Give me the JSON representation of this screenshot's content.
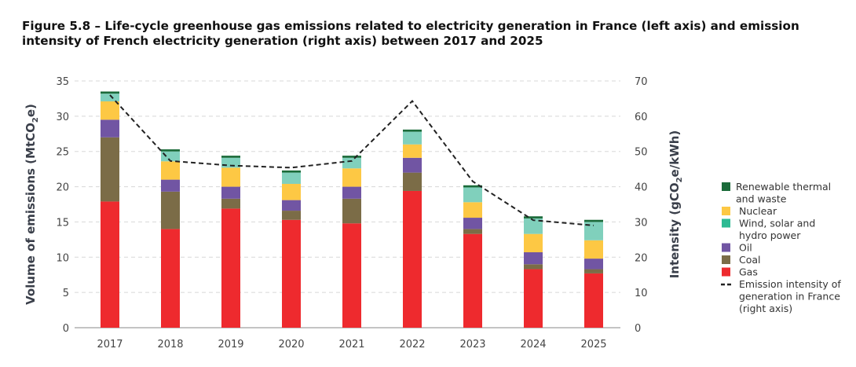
{
  "title": "Figure 5.8 – Life-cycle greenhouse gas emissions related to electricity generation in France (left axis) and emission intensity of French electricity generation (right axis) between 2017 and 2025",
  "chart_data": {
    "type": "bar",
    "stacked": true,
    "title": "Figure 5.8 – Life-cycle greenhouse gas emissions related to electricity generation in France (left axis) and emission intensity of French electricity generation (right axis) between 2017 and 2025",
    "categories": [
      "2017",
      "2018",
      "2019",
      "2020",
      "2021",
      "2022",
      "2023",
      "2024",
      "2025"
    ],
    "ylabel": {
      "pre": "Volume of emissions (MtCO",
      "sub": "2",
      "post": "e)"
    },
    "y2label": {
      "pre": "Intensity (gCO",
      "sub": "2",
      "post": "e/kWh)"
    },
    "ylim": [
      0,
      35
    ],
    "yticks": [
      0,
      5,
      10,
      15,
      20,
      25,
      30,
      35
    ],
    "y2lim": [
      0,
      70
    ],
    "y2ticks": [
      0,
      10,
      20,
      30,
      40,
      50,
      60,
      70
    ],
    "grid": true,
    "legend_position": "right",
    "series": [
      {
        "name": "Gas",
        "color": "#EE2A2E",
        "values": [
          17.9,
          14.0,
          16.9,
          15.3,
          14.8,
          19.4,
          13.3,
          8.3,
          7.7
        ]
      },
      {
        "name": "Coal",
        "color": "#7B6C47",
        "values": [
          9.1,
          5.3,
          1.4,
          1.3,
          3.5,
          2.6,
          0.7,
          0.7,
          0.6
        ]
      },
      {
        "name": "Oil",
        "color": "#7155A3",
        "values": [
          2.5,
          1.7,
          1.7,
          1.5,
          1.7,
          2.1,
          1.6,
          1.7,
          1.5
        ]
      },
      {
        "name": "Nuclear",
        "color": "#FDC844",
        "values": [
          2.6,
          2.6,
          2.7,
          2.3,
          2.6,
          1.9,
          2.2,
          2.6,
          2.6
        ]
      },
      {
        "name": "Wind, solar and hydro power",
        "color": "#80D0BC",
        "legend_color": "#2DBA93",
        "values": [
          1.1,
          1.4,
          1.4,
          1.6,
          1.5,
          1.8,
          2.1,
          2.2,
          2.6
        ]
      },
      {
        "name": "Renewable thermal and waste",
        "color": "#1B6B3A",
        "values": [
          0.3,
          0.3,
          0.3,
          0.3,
          0.3,
          0.3,
          0.3,
          0.3,
          0.3
        ]
      }
    ],
    "line": {
      "name": "Emission intensity of generation in France (right axis)",
      "axis": "right",
      "style": "dashed",
      "color": "#222222",
      "values": [
        66,
        47.3,
        46,
        45.4,
        47.3,
        64.3,
        41.5,
        30.5,
        29
      ]
    },
    "legend": [
      {
        "label": [
          "Renewable thermal",
          "and waste"
        ],
        "series": 5
      },
      {
        "label": [
          "Nuclear"
        ],
        "series": 3
      },
      {
        "label": [
          "Wind, solar and",
          "hydro power"
        ],
        "series": 4
      },
      {
        "label": [
          "Oil"
        ],
        "series": 2
      },
      {
        "label": [
          "Coal"
        ],
        "series": 1
      },
      {
        "label": [
          "Gas"
        ],
        "series": 0
      },
      {
        "label": [
          "Emission intensity of",
          "generation in France",
          "(right axis)"
        ],
        "series": "line"
      }
    ]
  }
}
